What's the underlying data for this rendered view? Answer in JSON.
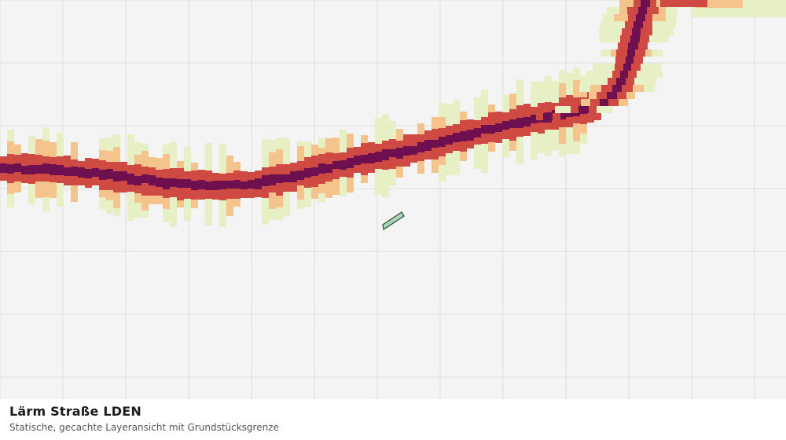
{
  "map": {
    "layer_title": "Lärm Straße LDEN",
    "caption": "Statische, gecachte Layeransicht mit Grundstücksgrenze",
    "colors": {
      "background": "#f3f4f3",
      "grid": "#dddfdd",
      "noise_band_1": "#e6f0c4",
      "noise_band_2": "#f4c48c",
      "noise_band_3": "#cf4a42",
      "noise_band_4": "#6e1050",
      "parcel_fill": "#a8d8b8",
      "parcel_stroke": "#2d4a35"
    }
  }
}
